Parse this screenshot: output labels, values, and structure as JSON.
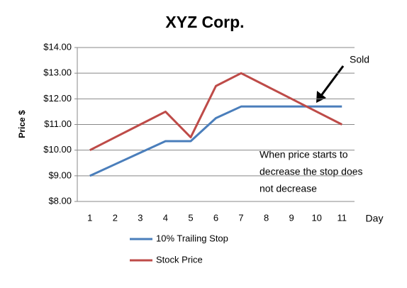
{
  "chart_data": {
    "type": "line",
    "title": "XYZ Corp.",
    "y_label": "Price $",
    "x_label": "Day",
    "categories": [
      "1",
      "2",
      "3",
      "4",
      "5",
      "6",
      "7",
      "8",
      "9",
      "10",
      "11"
    ],
    "series": [
      {
        "name": "10% Trailing Stop",
        "color": "#4a7ebb",
        "values": [
          9,
          9.45,
          9.9,
          10.35,
          10.35,
          11.25,
          11.7,
          11.7,
          11.7,
          11.7,
          11.7
        ]
      },
      {
        "name": "Stock Price",
        "color": "#be4b48",
        "values": [
          10,
          10.5,
          11,
          11.5,
          10.5,
          12.5,
          13,
          12.5,
          12,
          11.5,
          11
        ]
      }
    ],
    "ylim": [
      8,
      14
    ],
    "yticks": [
      {
        "value": 8,
        "label": "$8.00"
      },
      {
        "value": 9,
        "label": "$9.00"
      },
      {
        "value": 10,
        "label": "$10.00"
      },
      {
        "value": 11,
        "label": "$11.00"
      },
      {
        "value": 12,
        "label": "$12.00"
      },
      {
        "value": 13,
        "label": "$13.00"
      },
      {
        "value": 14,
        "label": "$14.00"
      }
    ],
    "grid": true,
    "legend": "bottom",
    "annotations": {
      "sold": "Sold",
      "note": [
        "When price starts to",
        "decrease the stop does",
        "not decrease"
      ]
    }
  }
}
